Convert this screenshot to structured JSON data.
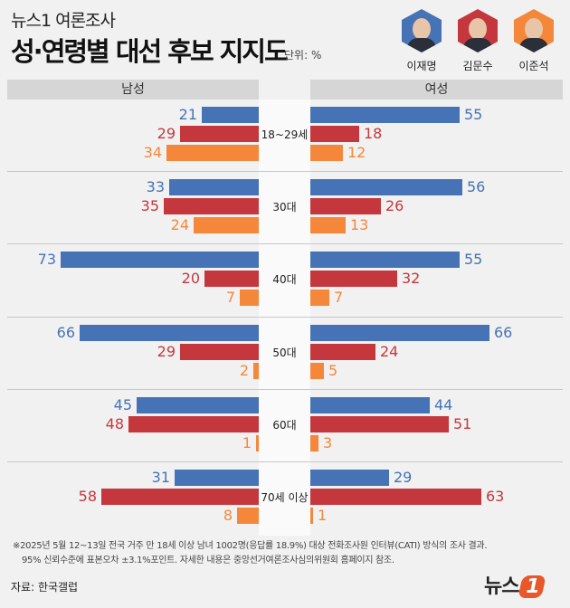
{
  "header": {
    "supertitle": "뉴스1 여론조사",
    "title": "성·연령별 대선 후보 지지도",
    "unit": "단위: %"
  },
  "candidates": [
    {
      "name": "이재명",
      "color": "#4573b5"
    },
    {
      "name": "김문수",
      "color": "#c4383d"
    },
    {
      "name": "이준석",
      "color": "#f5873a"
    }
  ],
  "chart_data": {
    "type": "bar",
    "orientation": "horizontal-butterfly",
    "panels": [
      "남성",
      "여성"
    ],
    "categories": [
      "18~29세",
      "30대",
      "40대",
      "50대",
      "60대",
      "70세 이상"
    ],
    "series": [
      {
        "name": "이재명",
        "color": "#4573b5",
        "male": [
          21,
          33,
          73,
          66,
          45,
          31
        ],
        "female": [
          55,
          56,
          55,
          66,
          44,
          29
        ]
      },
      {
        "name": "김문수",
        "color": "#c4383d",
        "male": [
          29,
          35,
          20,
          29,
          48,
          58
        ],
        "female": [
          18,
          26,
          32,
          24,
          51,
          63
        ]
      },
      {
        "name": "이준석",
        "color": "#f5873a",
        "male": [
          34,
          24,
          7,
          2,
          1,
          8
        ],
        "female": [
          12,
          13,
          7,
          5,
          3,
          1
        ]
      }
    ],
    "unit": "%"
  },
  "footer": {
    "note1": "※2025년 5월 12~13일 전국 거주 만 18세 이상 남녀 1002명(응답률 18.9%) 대상 전화조사원 인터뷰(CATI) 방식의 조사 결과.",
    "note2": "95% 신뢰수준에 표본오차 ±3.1%포인트. 자세한 내용은 중앙선거여론조사심의위원회 홈페이지 참조.",
    "source": "자료: 한국갤럽",
    "logo": "뉴스1"
  }
}
